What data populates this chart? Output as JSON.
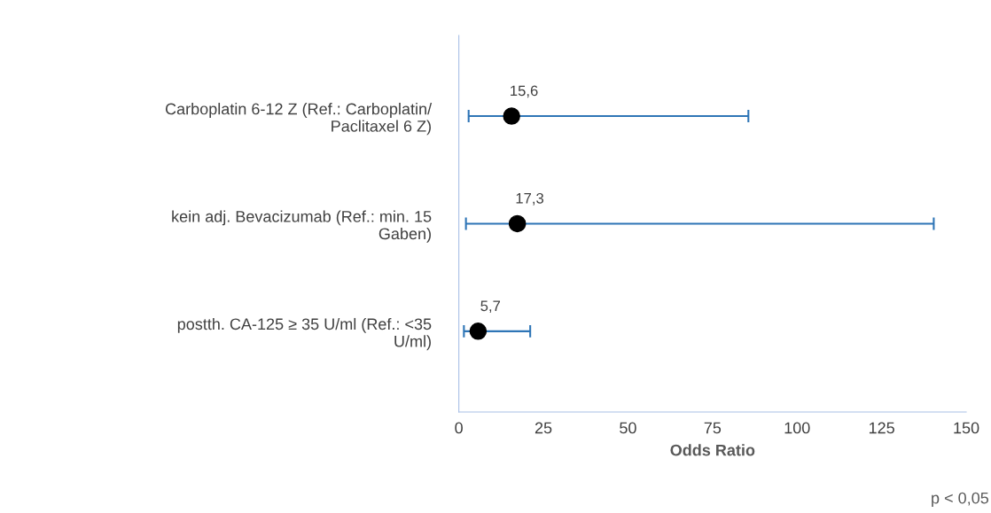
{
  "chart_data": {
    "type": "scatter",
    "orientation": "horizontal",
    "categories": [
      "Carboplatin 6-12 Z (Ref.: Carboplatin/\nPaclitaxel 6 Z)",
      "kein adj. Bevacizumab (Ref.: min. 15\nGaben)",
      "postth. CA-125 ≥ 35 U/ml (Ref.: <35\nU/ml)"
    ],
    "values": [
      15.6,
      17.3,
      5.7
    ],
    "errors": [
      [
        2.9,
        85.6
      ],
      [
        2.1,
        140.4
      ],
      [
        1.5,
        21.1
      ]
    ],
    "value_labels": [
      "15,6",
      "17,3",
      "5,7"
    ],
    "color": "#000000",
    "xlim": [
      0,
      150
    ],
    "xticks": [
      0,
      25,
      50,
      75,
      100,
      125,
      150
    ],
    "xlabel": "Odds Ratio",
    "annotations": [
      "p < 0,05"
    ],
    "marker": "circle",
    "grid": false,
    "legend": false
  }
}
